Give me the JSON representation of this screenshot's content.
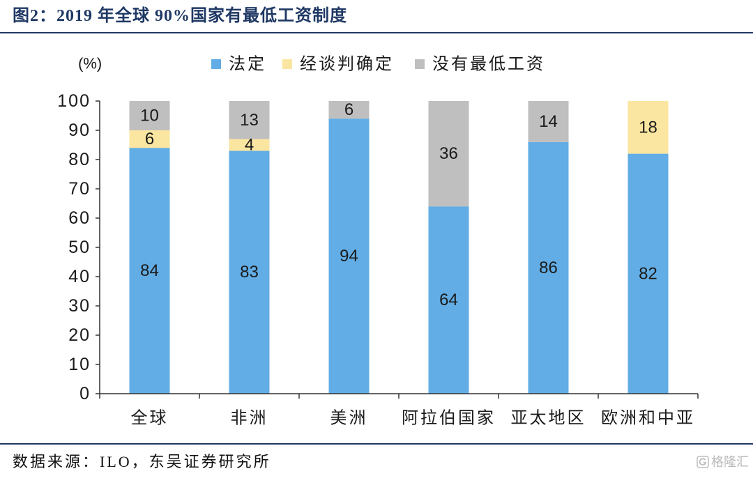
{
  "figure": {
    "title": "图2：2019 年全球 90%国家有最低工资制度",
    "source": "数据来源：ILO，东吴证券研究所",
    "watermark": "格隆汇"
  },
  "chart_data": {
    "type": "bar",
    "stacked": true,
    "title": "",
    "xlabel": "",
    "ylabel": "(%)",
    "ylim": [
      0,
      100
    ],
    "yticks": [
      0,
      10,
      20,
      30,
      40,
      50,
      60,
      70,
      80,
      90,
      100
    ],
    "grid": false,
    "legend": "top",
    "categories": [
      "全球",
      "非洲",
      "美洲",
      "阿拉伯国家",
      "亚太地区",
      "欧洲和中亚"
    ],
    "series": [
      {
        "name": "法定",
        "color": "#62ADE5",
        "values": [
          84,
          83,
          94,
          64,
          86,
          82
        ]
      },
      {
        "name": "经谈判确定",
        "color": "#FAE6A0",
        "values": [
          6,
          4,
          0,
          0,
          0,
          18
        ]
      },
      {
        "name": "没有最低工资",
        "color": "#BFBFBF",
        "values": [
          10,
          13,
          6,
          36,
          14,
          0
        ]
      }
    ]
  }
}
